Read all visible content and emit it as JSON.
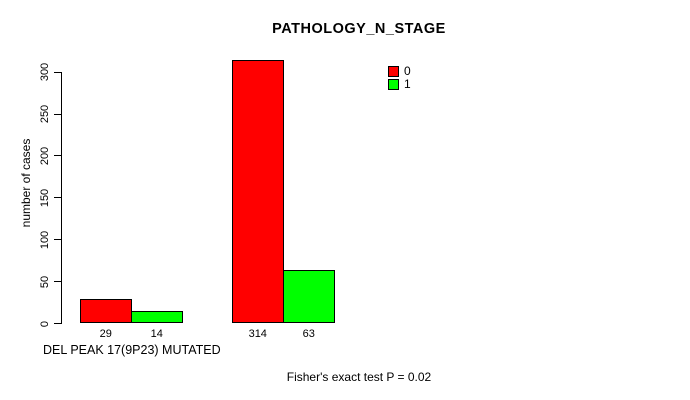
{
  "chart_data": {
    "type": "bar",
    "title": "PATHOLOGY_N_STAGE",
    "xlabel": "DEL PEAK 17(9P23) MUTATED",
    "ylabel": "number of cases",
    "annotation": "Fisher's exact test P = 0.02",
    "yticks": [
      0,
      50,
      100,
      150,
      200,
      250,
      300
    ],
    "ylim": [
      0,
      314
    ],
    "grid": false,
    "legend_position": "top-right",
    "show_value_labels": true,
    "categories": [
      "",
      ""
    ],
    "series": [
      {
        "name": "0",
        "color": "#ff0000",
        "values": [
          29,
          314
        ]
      },
      {
        "name": "1",
        "color": "#00ff00",
        "values": [
          14,
          63
        ]
      }
    ]
  }
}
